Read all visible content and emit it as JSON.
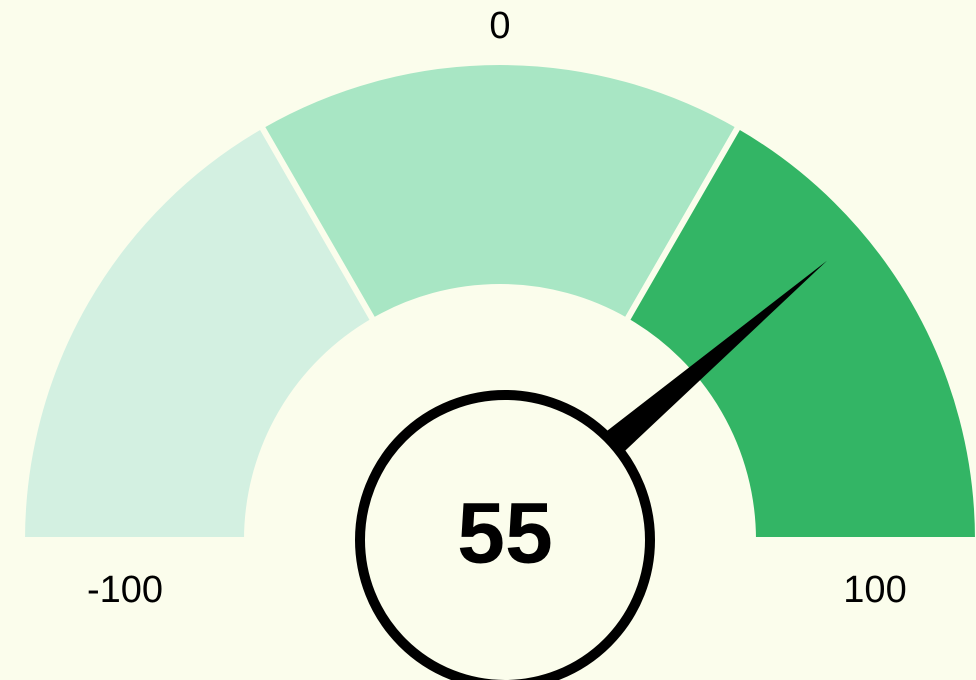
{
  "chart_data": {
    "type": "gauge",
    "value": 55,
    "range": [
      -100,
      100
    ],
    "ticks": [
      -100,
      0,
      100
    ],
    "bands": [
      {
        "from": -100,
        "to": -33.3,
        "color": "#d3f0e1"
      },
      {
        "from": -33.3,
        "to": 33.3,
        "color": "#a8e6c4"
      },
      {
        "from": 33.3,
        "to": 100,
        "color": "#33b565"
      }
    ],
    "needle_color": "#000000",
    "background": "#fbfdec"
  }
}
